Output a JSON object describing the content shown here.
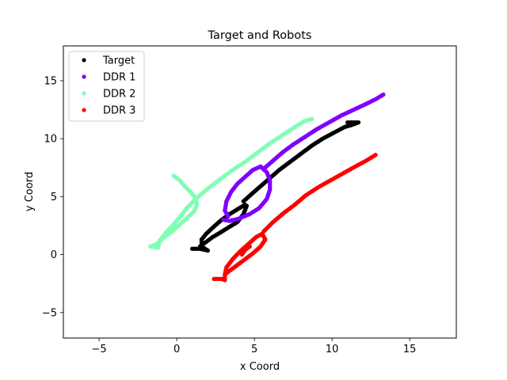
{
  "chart_data": {
    "type": "scatter",
    "title": "Target and Robots",
    "xlabel": "x Coord",
    "ylabel": "y Coord",
    "xlim": [
      -7.3,
      18
    ],
    "ylim": [
      -7.2,
      18
    ],
    "xticks": [
      -5,
      0,
      5,
      10,
      15
    ],
    "yticks": [
      -5,
      0,
      5,
      10,
      15
    ],
    "xtick_labels": [
      "−5",
      "0",
      "5",
      "10",
      "15"
    ],
    "ytick_labels": [
      "−5",
      "0",
      "5",
      "10",
      "15"
    ],
    "grid": false,
    "legend_position": "top-left",
    "series": [
      {
        "name": "Target",
        "color": "#000000",
        "points": [
          [
            1.0,
            0.5
          ],
          [
            1.5,
            0.5
          ],
          [
            2.0,
            0.35
          ],
          [
            1.6,
            0.7
          ],
          [
            1.6,
            1.3
          ],
          [
            1.9,
            1.8
          ],
          [
            2.3,
            2.3
          ],
          [
            2.8,
            2.9
          ],
          [
            3.3,
            3.4
          ],
          [
            3.9,
            3.9
          ],
          [
            4.4,
            4.3
          ],
          [
            4.5,
            4.2
          ],
          [
            4.3,
            3.5
          ],
          [
            3.9,
            2.8
          ],
          [
            3.4,
            2.4
          ],
          [
            2.8,
            1.9
          ],
          [
            2.3,
            1.5
          ],
          [
            1.9,
            1.1
          ],
          [
            1.5,
            0.7
          ],
          [
            4.3,
            4.6
          ],
          [
            4.8,
            5.2
          ],
          [
            5.4,
            5.9
          ],
          [
            6.0,
            6.6
          ],
          [
            6.6,
            7.3
          ],
          [
            7.3,
            8.0
          ],
          [
            8.0,
            8.7
          ],
          [
            8.7,
            9.4
          ],
          [
            9.4,
            10.0
          ],
          [
            10.1,
            10.5
          ],
          [
            10.8,
            11.0
          ],
          [
            11.3,
            11.2
          ],
          [
            11.7,
            11.4
          ],
          [
            11.0,
            11.4
          ]
        ]
      },
      {
        "name": "DDR 1",
        "color": "#7f00ff",
        "points": [
          [
            3.0,
            3.0
          ],
          [
            3.4,
            2.9
          ],
          [
            4.0,
            3.1
          ],
          [
            4.7,
            3.5
          ],
          [
            5.3,
            4.0
          ],
          [
            5.8,
            4.8
          ],
          [
            6.0,
            5.6
          ],
          [
            6.0,
            6.4
          ],
          [
            5.8,
            7.1
          ],
          [
            5.4,
            7.6
          ],
          [
            4.9,
            7.3
          ],
          [
            4.4,
            6.7
          ],
          [
            3.9,
            6.1
          ],
          [
            3.5,
            5.4
          ],
          [
            3.2,
            4.6
          ],
          [
            3.1,
            3.8
          ],
          [
            3.3,
            3.3
          ],
          [
            5.6,
            7.4
          ],
          [
            6.2,
            8.1
          ],
          [
            6.8,
            8.8
          ],
          [
            7.5,
            9.5
          ],
          [
            8.2,
            10.1
          ],
          [
            9.0,
            10.8
          ],
          [
            9.8,
            11.4
          ],
          [
            10.6,
            12.0
          ],
          [
            11.4,
            12.5
          ],
          [
            12.2,
            13.0
          ],
          [
            12.8,
            13.4
          ],
          [
            13.3,
            13.8
          ]
        ]
      },
      {
        "name": "DDR 2",
        "color": "#80ffb4",
        "points": [
          [
            -0.2,
            6.8
          ],
          [
            0.2,
            6.4
          ],
          [
            0.5,
            5.9
          ],
          [
            0.9,
            5.4
          ],
          [
            1.2,
            4.9
          ],
          [
            1.3,
            4.3
          ],
          [
            1.1,
            3.7
          ],
          [
            0.7,
            3.2
          ],
          [
            0.2,
            2.6
          ],
          [
            -0.3,
            2.0
          ],
          [
            -0.9,
            1.4
          ],
          [
            -1.3,
            0.9
          ],
          [
            -1.7,
            0.7
          ],
          [
            -1.2,
            0.6
          ],
          [
            -1.1,
            1.2
          ],
          [
            -0.7,
            1.9
          ],
          [
            -0.2,
            2.6
          ],
          [
            0.3,
            3.4
          ],
          [
            0.7,
            4.1
          ],
          [
            1.3,
            4.9
          ],
          [
            2.0,
            5.7
          ],
          [
            2.8,
            6.5
          ],
          [
            3.6,
            7.3
          ],
          [
            4.4,
            8.0
          ],
          [
            5.2,
            8.8
          ],
          [
            6.0,
            9.6
          ],
          [
            6.8,
            10.3
          ],
          [
            7.6,
            11.0
          ],
          [
            8.2,
            11.5
          ],
          [
            8.7,
            11.7
          ]
        ]
      },
      {
        "name": "DDR 3",
        "color": "#ff0000",
        "points": [
          [
            2.4,
            -2.1
          ],
          [
            2.9,
            -2.1
          ],
          [
            3.1,
            -2.2
          ],
          [
            3.1,
            -1.7
          ],
          [
            3.2,
            -1.1
          ],
          [
            3.6,
            -0.4
          ],
          [
            4.1,
            0.3
          ],
          [
            4.6,
            0.9
          ],
          [
            5.1,
            1.5
          ],
          [
            5.5,
            1.8
          ],
          [
            5.7,
            1.3
          ],
          [
            5.4,
            0.7
          ],
          [
            4.9,
            0.1
          ],
          [
            4.3,
            -0.5
          ],
          [
            3.7,
            -1.1
          ],
          [
            3.2,
            -1.6
          ],
          [
            4.7,
            0.7
          ],
          [
            4.4,
            0.4
          ],
          [
            4.2,
            0.0
          ],
          [
            5.6,
            2.0
          ],
          [
            6.2,
            2.8
          ],
          [
            6.9,
            3.6
          ],
          [
            7.6,
            4.3
          ],
          [
            8.3,
            5.1
          ],
          [
            9.1,
            5.8
          ],
          [
            9.9,
            6.4
          ],
          [
            10.7,
            7.0
          ],
          [
            11.5,
            7.6
          ],
          [
            12.2,
            8.1
          ],
          [
            12.8,
            8.6
          ]
        ]
      }
    ]
  }
}
